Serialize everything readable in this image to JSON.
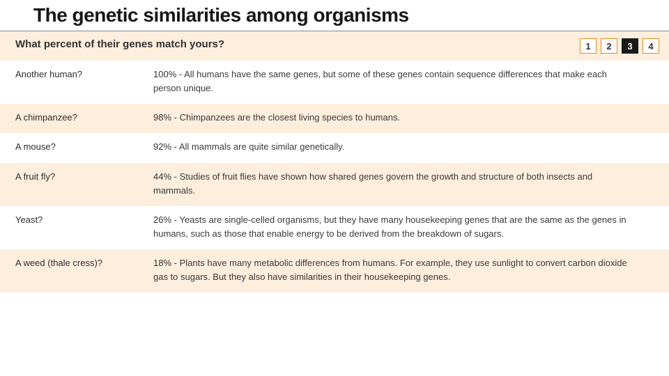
{
  "title": "The genetic similarities among organisms",
  "subhead": "What percent of their genes match yours?",
  "pager": {
    "items": [
      "1",
      "2",
      "3",
      "4"
    ],
    "active_index": 2
  },
  "colors": {
    "row_alt_bg": "#fdeedd",
    "pager_border": "#e38b1f",
    "pager_active_bg": "#1a1a1a",
    "pager_active_fg": "#ffffff",
    "text": "#3a3a3a"
  },
  "rows": [
    {
      "organism": "Another human?",
      "percent": "100%",
      "description": "All humans have the same genes, but some of these genes contain sequence differences that make each person unique."
    },
    {
      "organism": "A chimpanzee?",
      "percent": "98%",
      "description": "Chimpanzees are the closest living species to humans."
    },
    {
      "organism": "A mouse?",
      "percent": "92%",
      "description": "All mammals are quite similar genetically."
    },
    {
      "organism": "A fruit fly?",
      "percent": "44%",
      "description": "Studies of fruit flies have shown how shared genes govern the growth and structure of both insects and mammals."
    },
    {
      "organism": "Yeast?",
      "percent": "26%",
      "description": "Yeasts are single-celled organisms, but they have many housekeeping genes that are the same as the genes in humans, such as those that enable energy to be derived from the breakdown of sugars."
    },
    {
      "organism": "A weed (thale cress)?",
      "percent": "18%",
      "description": "Plants have many metabolic differences from humans. For example, they use sunlight to convert carbon dioxide gas to sugars. But they also have similarities in their housekeeping genes."
    }
  ]
}
